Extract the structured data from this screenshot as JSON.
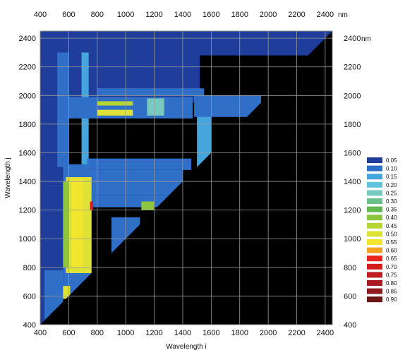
{
  "chart_data": {
    "type": "heatmap",
    "title": "",
    "xlabel": "Wavelength i",
    "ylabel": "Wavelength j",
    "unit": "nm",
    "xlim": [
      400,
      2450
    ],
    "ylim": [
      400,
      2450
    ],
    "x_ticks": [
      "400",
      "600",
      "800",
      "1000",
      "1200",
      "1400",
      "1600",
      "1800",
      "2000",
      "2200",
      "2400"
    ],
    "y_ticks": [
      "400",
      "600",
      "800",
      "1000",
      "1200",
      "1400",
      "1600",
      "1800",
      "2000",
      "2200",
      "2400"
    ],
    "top_tick_labels": [
      "400",
      "600",
      "800",
      "1000",
      "1200",
      "1400",
      "1600",
      "1800",
      "2000",
      "2200",
      "2400"
    ],
    "right_tick_labels": [
      "400",
      "600",
      "800",
      "1000",
      "1200",
      "1400",
      "1600",
      "1800",
      "2000",
      "2200",
      "2400"
    ],
    "grid": true,
    "background_color": "#000000",
    "legend_position": "right",
    "legend": [
      {
        "label": "0.05",
        "color": "#1f3e9b"
      },
      {
        "label": "0.10",
        "color": "#2f6fc8"
      },
      {
        "label": "0.15",
        "color": "#45a6de"
      },
      {
        "label": "0.20",
        "color": "#5fc3dc"
      },
      {
        "label": "0.25",
        "color": "#78c9c0"
      },
      {
        "label": "0.30",
        "color": "#6cc08a"
      },
      {
        "label": "0.35",
        "color": "#62b84f"
      },
      {
        "label": "0.40",
        "color": "#8cc63f"
      },
      {
        "label": "0.45",
        "color": "#b7d433"
      },
      {
        "label": "0.50",
        "color": "#dfe236"
      },
      {
        "label": "0.55",
        "color": "#f1e62d"
      },
      {
        "label": "0.60",
        "color": "#f2a324"
      },
      {
        "label": "0.65",
        "color": "#e8261e"
      },
      {
        "label": "0.70",
        "color": "#d41c1c"
      },
      {
        "label": "0.75",
        "color": "#bf1d24"
      },
      {
        "label": "0.80",
        "color": "#a81a20"
      },
      {
        "label": "0.85",
        "color": "#901a1e"
      },
      {
        "label": "0.90",
        "color": "#6b1516"
      }
    ],
    "regions": [
      {
        "x": [
          400,
          2450
        ],
        "y": [
          2280,
          2450
        ],
        "level": 0.05
      },
      {
        "x": [
          400,
          1520
        ],
        "y": [
          1950,
          2280
        ],
        "level": 0.05
      },
      {
        "x": [
          400,
          560
        ],
        "y": [
          400,
          2450
        ],
        "level": 0.05
      },
      {
        "x": [
          520,
          600
        ],
        "y": [
          1500,
          2300
        ],
        "level": 0.1
      },
      {
        "x": [
          690,
          740
        ],
        "y": [
          1400,
          2300
        ],
        "level": 0.15
      },
      {
        "x": [
          560,
          760
        ],
        "y": [
          600,
          1520
        ],
        "level": 0.1
      },
      {
        "x": [
          800,
          1550
        ],
        "y": [
          2000,
          2050
        ],
        "level": 0.1
      },
      {
        "x": [
          600,
          1470
        ],
        "y": [
          1840,
          1990
        ],
        "level": 0.1
      },
      {
        "x": [
          800,
          1050
        ],
        "y": [
          1930,
          1960
        ],
        "level": 0.45
      },
      {
        "x": [
          800,
          1050
        ],
        "y": [
          1860,
          1900
        ],
        "level": 0.5
      },
      {
        "x": [
          1150,
          1270
        ],
        "y": [
          1860,
          1980
        ],
        "level": 0.25
      },
      {
        "x": [
          1500,
          1600
        ],
        "y": [
          1500,
          1990
        ],
        "level": 0.15
      },
      {
        "x": [
          1480,
          1950
        ],
        "y": [
          1850,
          2000
        ],
        "level": 0.1
      },
      {
        "x": [
          730,
          1460
        ],
        "y": [
          1480,
          1560
        ],
        "level": 0.1
      },
      {
        "x": [
          730,
          1400
        ],
        "y": [
          1300,
          1480
        ],
        "level": 0.1
      },
      {
        "x": [
          760,
          1400
        ],
        "y": [
          1220,
          1300
        ],
        "level": 0.1
      },
      {
        "x": [
          580,
          760
        ],
        "y": [
          760,
          1430
        ],
        "level": 0.5
      },
      {
        "x": [
          620,
          700
        ],
        "y": [
          800,
          1420
        ],
        "level": 0.55
      },
      {
        "x": [
          560,
          600
        ],
        "y": [
          800,
          1400
        ],
        "level": 0.4
      },
      {
        "x": [
          750,
          770
        ],
        "y": [
          1200,
          1260
        ],
        "level": 0.7
      },
      {
        "x": [
          1110,
          1200
        ],
        "y": [
          1200,
          1260
        ],
        "level": 0.4
      },
      {
        "x": [
          900,
          1100
        ],
        "y": [
          900,
          1150
        ],
        "level": 0.1
      },
      {
        "x": [
          530,
          610
        ],
        "y": [
          580,
          670
        ],
        "level": 0.5
      },
      {
        "x": [
          430,
          560
        ],
        "y": [
          420,
          780
        ],
        "level": 0.1
      }
    ]
  }
}
